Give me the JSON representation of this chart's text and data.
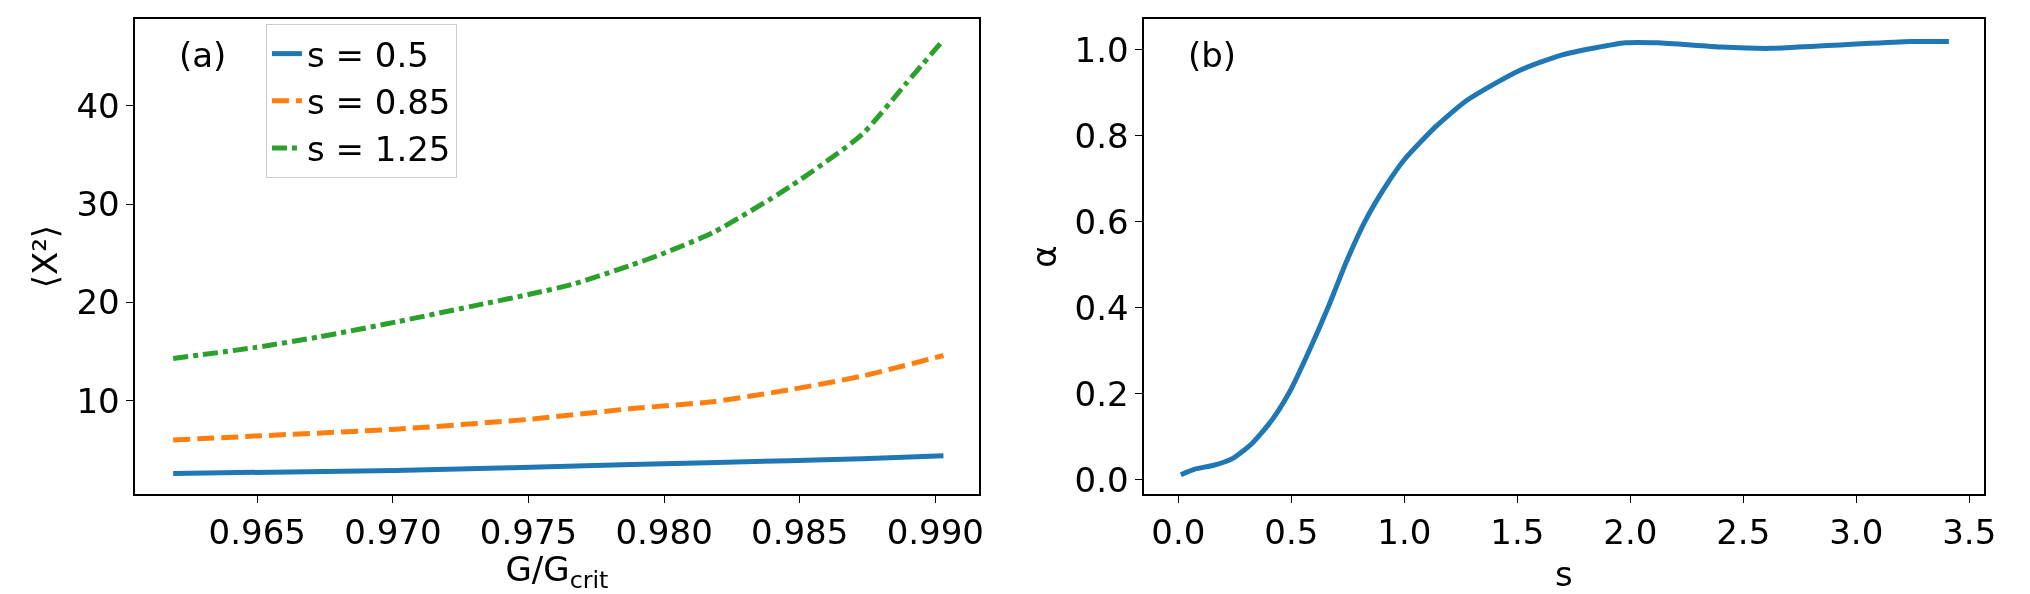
{
  "chart_data": [
    {
      "type": "line",
      "xlabel": "G/G$_{crit}$",
      "ylabel": "⟨X²⟩",
      "annotations": [
        "(a)"
      ],
      "xlim": [
        0.9605,
        0.9916
      ],
      "ylim": [
        0.46,
        48.86
      ],
      "xticks": [
        0.965,
        {
          "value": 0.97,
          "label": "0.970"
        },
        0.975,
        {
          "value": 0.98,
          "label": "0.980"
        },
        0.985,
        {
          "value": 0.99,
          "label": "0.990"
        }
      ],
      "yticks": [
        10,
        20,
        30,
        40
      ],
      "legend": "top left",
      "series": [
        {
          "name": "s = 0.5",
          "color": "#1f77b4",
          "line_style": "solid",
          "x": [
            0.9619,
            0.9701,
            0.9788,
            0.9846,
            0.9873,
            0.9903
          ],
          "values": [
            2.6,
            2.9,
            3.5,
            3.9,
            4.1,
            4.4
          ]
        },
        {
          "name": "s = 0.85",
          "color": "#ff7f0e",
          "line_style": "dashed",
          "x": [
            0.9619,
            0.9649,
            0.9701,
            0.975,
            0.9788,
            0.9818,
            0.9846,
            0.9873,
            0.9903
          ],
          "values": [
            6.0,
            6.4,
            7.1,
            8.1,
            9.2,
            9.9,
            11.1,
            12.5,
            14.6
          ]
        },
        {
          "name": "s = 1.25",
          "color": "#2ca02c",
          "line_style": "dashdot",
          "x": [
            0.9619,
            0.9649,
            0.9673,
            0.9701,
            0.9729,
            0.975,
            0.9767,
            0.9788,
            0.9799,
            0.9818,
            0.9846,
            0.9873,
            0.9889,
            0.9903
          ],
          "values": [
            14.3,
            15.4,
            16.5,
            18.0,
            19.6,
            20.8,
            21.9,
            23.8,
            24.9,
            27.1,
            31.7,
            37.1,
            42.2,
            46.7
          ]
        }
      ]
    },
    {
      "type": "line",
      "xlabel": "s",
      "ylabel": "α",
      "annotations": [
        "(b)"
      ],
      "xlim": [
        -0.151,
        3.564
      ],
      "ylim": [
        -0.034,
        1.072
      ],
      "xticks": [
        {
          "value": 0,
          "label": "0.0"
        },
        0.5,
        {
          "value": 1,
          "label": "1.0"
        },
        1.5,
        {
          "value": 2,
          "label": "2.0"
        },
        2.5,
        {
          "value": 3,
          "label": "3.0"
        },
        3.5
      ],
      "yticks": [
        {
          "value": 0,
          "label": "0.0"
        },
        0.2,
        0.4,
        0.6,
        0.8,
        {
          "value": 1,
          "label": "1.0"
        }
      ],
      "series": [
        {
          "color": "#1f77b4",
          "line_style": "solid",
          "x": [
            0.011,
            0.073,
            0.157,
            0.241,
            0.325,
            0.41,
            0.494,
            0.578,
            0.662,
            0.746,
            0.83,
            0.914,
            0.998,
            1.139,
            1.279,
            1.503,
            1.699,
            1.98,
            2.12,
            2.4,
            2.62,
            2.96,
            3.24,
            3.41
          ],
          "values": [
            0.012,
            0.025,
            0.034,
            0.05,
            0.084,
            0.136,
            0.206,
            0.299,
            0.4,
            0.51,
            0.605,
            0.68,
            0.743,
            0.821,
            0.883,
            0.95,
            0.988,
            1.016,
            1.016,
            1.006,
            1.003,
            1.012,
            1.019,
            1.019
          ]
        }
      ]
    }
  ]
}
